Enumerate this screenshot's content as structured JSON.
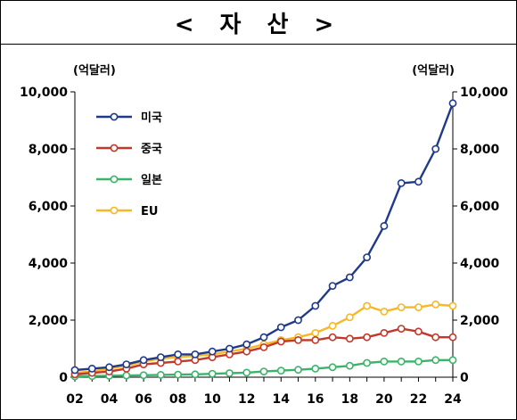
{
  "title": "< 자  산 >",
  "chart_data": {
    "type": "line",
    "title": "< 자  산 >",
    "left_unit": "(억달러)",
    "right_unit": "(억달러)",
    "ylim": [
      0,
      10000
    ],
    "yticks": [
      0,
      2000,
      4000,
      6000,
      8000,
      10000
    ],
    "ytick_labels": [
      "0",
      "2,000",
      "4,000",
      "6,000",
      "8,000",
      "10,000"
    ],
    "xlim": [
      2,
      24
    ],
    "xticks": [
      2,
      4,
      6,
      8,
      10,
      12,
      14,
      16,
      18,
      20,
      22,
      24
    ],
    "xtick_labels": [
      "02",
      "04",
      "06",
      "08",
      "10",
      "12",
      "14",
      "16",
      "18",
      "20",
      "22",
      "24"
    ],
    "x": [
      2,
      3,
      4,
      5,
      6,
      7,
      8,
      9,
      10,
      11,
      12,
      13,
      14,
      15,
      16,
      17,
      18,
      19,
      20,
      21,
      22,
      23,
      24
    ],
    "legend_position": "top-left",
    "grid": false,
    "series": [
      {
        "name": "미국",
        "color": "#1f3a8a",
        "values": [
          250,
          300,
          350,
          450,
          600,
          700,
          800,
          800,
          900,
          1000,
          1150,
          1400,
          1750,
          2000,
          2500,
          3200,
          3500,
          4200,
          5300,
          6800,
          6850,
          8000,
          9600
        ]
      },
      {
        "name": "중국",
        "color": "#c0392b",
        "values": [
          100,
          150,
          200,
          300,
          450,
          500,
          550,
          600,
          700,
          800,
          900,
          1050,
          1250,
          1300,
          1300,
          1400,
          1350,
          1400,
          1550,
          1700,
          1600,
          1400,
          1400
        ]
      },
      {
        "name": "일본",
        "color": "#3cb36a",
        "values": [
          30,
          40,
          50,
          60,
          70,
          80,
          90,
          100,
          120,
          140,
          160,
          200,
          230,
          260,
          300,
          350,
          400,
          500,
          550,
          550,
          550,
          600,
          600
        ]
      },
      {
        "name": "EU",
        "color": "#f6b826",
        "values": [
          150,
          200,
          300,
          400,
          550,
          650,
          700,
          750,
          800,
          900,
          1000,
          1150,
          1300,
          1400,
          1550,
          1800,
          2100,
          2500,
          2300,
          2450,
          2450,
          2550,
          2500
        ]
      }
    ]
  }
}
